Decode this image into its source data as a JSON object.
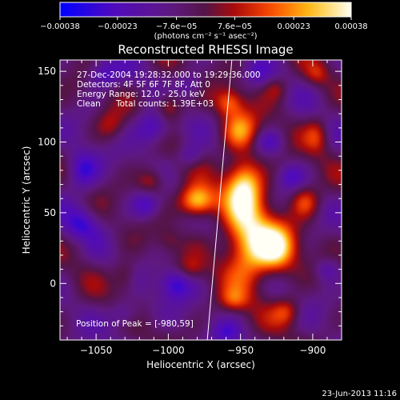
{
  "chart_data": {
    "type": "heatmap",
    "title": "Reconstructed RHESSI Image",
    "xlabel": "Heliocentric X (arcsec)",
    "ylabel": "Heliocentric Y (arcsec)",
    "xlim": [
      -1075,
      -880
    ],
    "ylim": [
      -40,
      158
    ],
    "x_ticks": [
      -1050,
      -1000,
      -950,
      -900
    ],
    "x_tick_labels": [
      "−1050",
      "−1000",
      "−950",
      "−900"
    ],
    "y_ticks": [
      0,
      50,
      100,
      150
    ],
    "y_tick_labels": [
      "0",
      "50",
      "100",
      "150"
    ],
    "colorbar": {
      "ticks": [
        -0.00038,
        -0.00023,
        -7.6e-05,
        7.6e-05,
        0.00023,
        0.00038
      ],
      "tick_labels": [
        "−0.00038",
        "−0.00023",
        "−7.6e−05",
        "7.6e−05",
        "0.00023",
        "0.00038"
      ],
      "unit_label": "(photons cm⁻² s⁻¹ asec⁻²)",
      "range": [
        -0.00038,
        0.00038
      ],
      "colormap": "blue-purple-red-orange-yellow-white"
    },
    "annotations": {
      "time_range": "27-Dec-2004 19:28:32.000 to 19:29:36.000",
      "detectors": "Detectors: 4F 5F 6F 7F 8F, Att 0",
      "energy": "Energy Range: 12.0 - 25.0 keV",
      "clean": "Clean",
      "total_counts": "Total counts: 1.39E+03",
      "peak": "Position of Peak = [-980,59]"
    },
    "peak": {
      "x": -980,
      "y": 59
    },
    "limb_line": [
      [
        -973,
        -40
      ],
      [
        -956,
        158
      ]
    ],
    "blobs": [
      {
        "x": -980,
        "y": 58,
        "amp": 1.0,
        "sx": 9,
        "sy": 8
      },
      {
        "x": -945,
        "y": 30,
        "amp": 0.95,
        "sx": 12,
        "sy": 22
      },
      {
        "x": -925,
        "y": 25,
        "amp": 0.9,
        "sx": 10,
        "sy": 12
      },
      {
        "x": -948,
        "y": 70,
        "amp": 0.85,
        "sx": 9,
        "sy": 14
      },
      {
        "x": -950,
        "y": 108,
        "amp": 0.65,
        "sx": 9,
        "sy": 10
      },
      {
        "x": -958,
        "y": 128,
        "amp": 0.55,
        "sx": 7,
        "sy": 7
      },
      {
        "x": -1000,
        "y": 125,
        "amp": 0.55,
        "sx": 7,
        "sy": 8
      },
      {
        "x": -1012,
        "y": 72,
        "amp": 0.45,
        "sx": 7,
        "sy": 7
      },
      {
        "x": -1040,
        "y": 112,
        "amp": 0.3,
        "sx": 7,
        "sy": 8
      },
      {
        "x": -1030,
        "y": 5,
        "amp": 0.35,
        "sx": 6,
        "sy": 8
      },
      {
        "x": -905,
        "y": 58,
        "amp": 0.5,
        "sx": 7,
        "sy": 8
      },
      {
        "x": -897,
        "y": 105,
        "amp": 0.4,
        "sx": 6,
        "sy": 9
      },
      {
        "x": -897,
        "y": 148,
        "amp": 0.3,
        "sx": 6,
        "sy": 6
      },
      {
        "x": -925,
        "y": 138,
        "amp": 0.3,
        "sx": 6,
        "sy": 6
      },
      {
        "x": -985,
        "y": 10,
        "amp": 0.3,
        "sx": 7,
        "sy": 6
      },
      {
        "x": -1060,
        "y": 30,
        "amp": 0.25,
        "sx": 6,
        "sy": 7
      },
      {
        "x": -918,
        "y": -20,
        "amp": 0.45,
        "sx": 7,
        "sy": 7
      },
      {
        "x": -955,
        "y": -12,
        "amp": 0.35,
        "sx": 7,
        "sy": 6
      },
      {
        "x": -1000,
        "y": 30,
        "amp": 0.2,
        "sx": 6,
        "sy": 6
      },
      {
        "x": -1060,
        "y": 80,
        "amp": -0.55,
        "sx": 8,
        "sy": 10
      },
      {
        "x": -1060,
        "y": 40,
        "amp": -0.5,
        "sx": 8,
        "sy": 10
      },
      {
        "x": -1010,
        "y": 110,
        "amp": -0.6,
        "sx": 9,
        "sy": 9
      },
      {
        "x": -1015,
        "y": 55,
        "amp": -0.45,
        "sx": 7,
        "sy": 7
      },
      {
        "x": -995,
        "y": 0,
        "amp": -0.55,
        "sx": 8,
        "sy": 8
      },
      {
        "x": -1045,
        "y": 148,
        "amp": -0.45,
        "sx": 8,
        "sy": 7
      },
      {
        "x": -985,
        "y": 90,
        "amp": -0.35,
        "sx": 6,
        "sy": 6
      },
      {
        "x": -1030,
        "y": -22,
        "amp": -0.4,
        "sx": 8,
        "sy": 7
      },
      {
        "x": -985,
        "y": 140,
        "amp": -0.3,
        "sx": 6,
        "sy": 6
      },
      {
        "x": -930,
        "y": 100,
        "amp": -0.35,
        "sx": 7,
        "sy": 6
      },
      {
        "x": -915,
        "y": 75,
        "amp": -0.3,
        "sx": 6,
        "sy": 6
      },
      {
        "x": -890,
        "y": 10,
        "amp": -0.35,
        "sx": 6,
        "sy": 6
      },
      {
        "x": -938,
        "y": 148,
        "amp": -0.25,
        "sx": 6,
        "sy": 6
      },
      {
        "x": -960,
        "y": -35,
        "amp": -0.3,
        "sx": 7,
        "sy": 6
      }
    ]
  },
  "footer": {
    "date": "23-Jun-2013 11:16"
  }
}
